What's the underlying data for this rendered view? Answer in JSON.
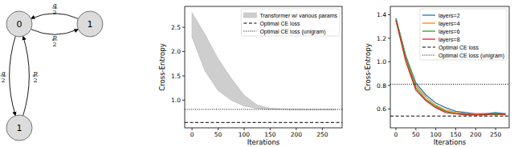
{
  "diagram": {
    "nodes": [
      {
        "label": "0"
      },
      {
        "label": "1"
      },
      {
        "label": "1"
      }
    ],
    "edges": [
      {
        "from": 1,
        "to": 0,
        "label": {
          "numerator": "q",
          "denominator": "2"
        }
      },
      {
        "from": 0,
        "to": 1,
        "label": {
          "numerator": "p",
          "denominator": "2"
        }
      },
      {
        "from": 0,
        "to": 2,
        "label": {
          "numerator": "q",
          "denominator": "2"
        }
      },
      {
        "from": 2,
        "to": 0,
        "label": {
          "numerator": "p",
          "denominator": "2"
        }
      }
    ]
  },
  "chart_data": [
    {
      "type": "line",
      "x_label": "Iterations",
      "y_label": "Cross-Entropy",
      "x": [
        0,
        25,
        50,
        75,
        100,
        125,
        150,
        175,
        200,
        225,
        250,
        275
      ],
      "xlim": [
        -14,
        288
      ],
      "ylim": [
        0.43,
        2.93
      ],
      "xticks": [
        0,
        50,
        100,
        150,
        200,
        250
      ],
      "yticks": [
        {
          "value": 1,
          "label": "1.0"
        },
        1.5,
        {
          "value": 2,
          "label": "2.0"
        },
        2.5
      ],
      "grid": false,
      "legend": "upper right",
      "series": [
        {
          "name": "Transformer w/ various params",
          "type": "band",
          "color": "#bdbdbd",
          "upper": [
            2.8,
            2.35,
            1.85,
            1.45,
            1.1,
            0.9,
            0.83,
            0.82,
            0.81,
            0.81,
            0.81,
            0.81
          ],
          "lower": [
            2.3,
            1.6,
            1.2,
            1.0,
            0.88,
            0.83,
            0.81,
            0.81,
            0.8,
            0.8,
            0.8,
            0.8
          ]
        },
        {
          "name": "Optimal CE loss",
          "type": "hline",
          "color": "#000000",
          "line_style": "dashed",
          "value": 0.54
        },
        {
          "name": "Optimal CE loss (unigram)",
          "type": "hline",
          "color": "#000000",
          "line_style": "dotted",
          "value": 0.81
        }
      ]
    },
    {
      "type": "line",
      "x_label": "Iterations",
      "y_label": "Cross-Entropy",
      "x": [
        0,
        25,
        50,
        75,
        100,
        125,
        150,
        175,
        200,
        225,
        250,
        275
      ],
      "xlim": [
        -14,
        284
      ],
      "ylim": [
        0.44,
        1.47
      ],
      "xticks": [
        0,
        50,
        100,
        150,
        200,
        250
      ],
      "yticks": [
        0.6,
        0.8,
        {
          "value": 1,
          "label": "1.0"
        },
        1.2,
        1.4
      ],
      "grid": false,
      "legend": "upper right",
      "series": [
        {
          "name": "layers=2",
          "color": "#1f77b4",
          "values": [
            1.37,
            1.05,
            0.82,
            0.72,
            0.65,
            0.61,
            0.58,
            0.57,
            0.56,
            0.56,
            0.57,
            0.56
          ]
        },
        {
          "name": "layers=4",
          "color": "#ff7f0e",
          "values": [
            1.36,
            1.04,
            0.8,
            0.7,
            0.63,
            0.59,
            0.57,
            0.56,
            0.56,
            0.56,
            0.56,
            0.56
          ]
        },
        {
          "name": "layers=6",
          "color": "#2ca02c",
          "values": [
            1.36,
            1.03,
            0.78,
            0.68,
            0.62,
            0.58,
            0.56,
            0.56,
            0.55,
            0.56,
            0.55,
            0.56
          ]
        },
        {
          "name": "layers=8",
          "color": "#d62728",
          "values": [
            1.35,
            1.0,
            0.76,
            0.67,
            0.61,
            0.57,
            0.56,
            0.55,
            0.55,
            0.55,
            0.56,
            0.55
          ]
        },
        {
          "name": "Optimal CE loss",
          "type": "hline",
          "color": "#000000",
          "line_style": "dashed",
          "value": 0.54
        },
        {
          "name": "Optimal CE loss (unigram)",
          "type": "hline",
          "color": "#000000",
          "line_style": "dotted",
          "value": 0.81
        }
      ]
    }
  ]
}
